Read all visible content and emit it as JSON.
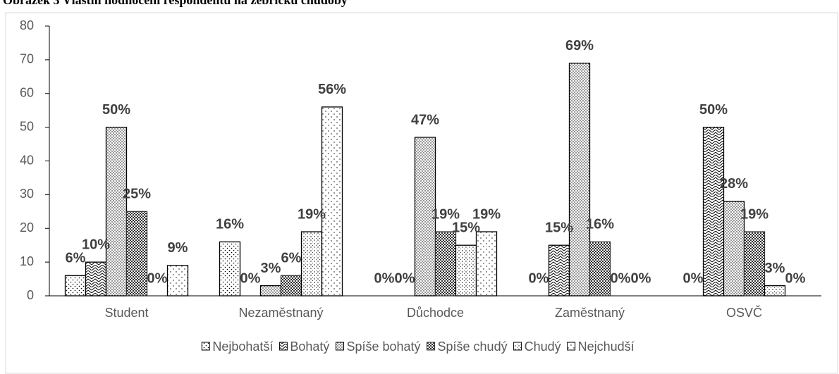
{
  "chart_data": {
    "type": "bar",
    "title": "Obrázek 3 Vlastní hodnocení respondentů na žebříčku chudoby",
    "categories": [
      "Student",
      "Nezaměstnaný",
      "Důchodce",
      "Zaměstnaný",
      "OSVČ"
    ],
    "series": [
      {
        "name": "Nejbohatší",
        "color": "#000000",
        "values": [
          6,
          16,
          0,
          0,
          0
        ],
        "value_labels": [
          "6%",
          "16%",
          "0%",
          "0%",
          "0%"
        ]
      },
      {
        "name": "Bohatý",
        "color": "#000000",
        "values": [
          10,
          0,
          0,
          15,
          50
        ],
        "value_labels": [
          "10%",
          "0%",
          "0%",
          "15%",
          "50%"
        ]
      },
      {
        "name": "Spíše bohatý",
        "color": "#000000",
        "values": [
          50,
          3,
          47,
          69,
          28
        ],
        "value_labels": [
          "50%",
          "3%",
          "47%",
          "69%",
          "28%"
        ]
      },
      {
        "name": "Spíše chudý",
        "color": "#333333",
        "values": [
          25,
          6,
          19,
          16,
          19
        ],
        "value_labels": [
          "25%",
          "6%",
          "19%",
          "16%",
          "19%"
        ]
      },
      {
        "name": "Chudý",
        "color": "#000000",
        "values": [
          0,
          19,
          15,
          0,
          3
        ],
        "value_labels": [
          "0%",
          "19%",
          "15%",
          "0%",
          "3%"
        ]
      },
      {
        "name": "Nejchudší",
        "color": "#000000",
        "values": [
          9,
          56,
          19,
          0,
          0
        ],
        "value_labels": [
          "9%",
          "56%",
          "19%",
          "0%",
          "0%"
        ]
      }
    ],
    "ylim": [
      0,
      80
    ],
    "yticks": [
      0,
      10,
      20,
      30,
      40,
      50,
      60,
      70,
      80
    ],
    "grid": false,
    "legend": "bottom"
  }
}
